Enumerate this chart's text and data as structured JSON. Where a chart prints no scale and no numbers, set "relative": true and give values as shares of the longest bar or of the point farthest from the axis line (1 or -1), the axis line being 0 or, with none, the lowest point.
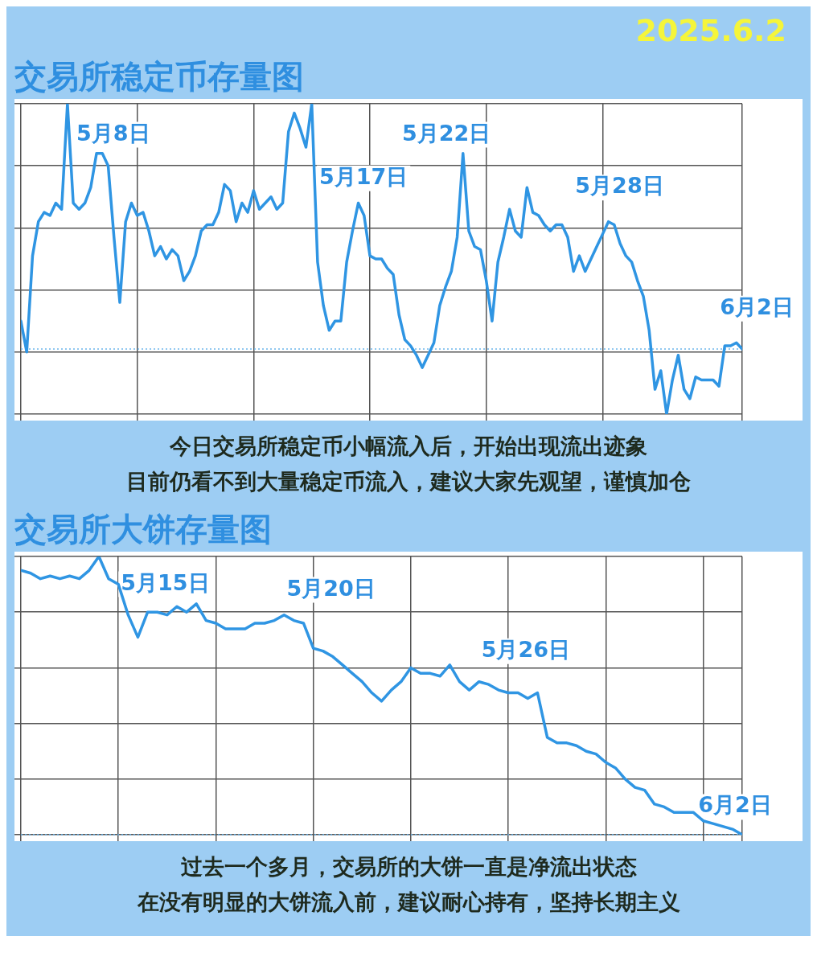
{
  "chart_data": [
    {
      "type": "line",
      "title": "交易所稳定币存量图",
      "subtitle": "2025.6.2",
      "relative": true,
      "grid": true,
      "marker": "none",
      "categories": [
        null,
        null,
        null,
        null,
        null,
        null,
        null,
        null,
        null,
        null,
        null,
        null,
        null,
        null,
        null,
        null,
        null,
        null,
        null,
        null,
        null,
        null,
        null,
        null,
        null,
        null,
        null,
        null,
        null,
        null,
        null,
        null,
        null,
        null,
        null,
        null,
        null,
        null,
        null,
        null,
        null,
        null,
        null,
        null,
        null,
        null,
        null,
        null,
        null,
        null,
        null,
        null,
        null,
        null,
        null,
        null,
        null,
        null,
        null,
        null,
        null,
        null,
        null,
        null,
        null,
        null,
        null,
        null,
        null,
        null,
        null,
        null,
        null,
        null,
        null,
        null,
        null,
        null,
        null,
        null,
        null,
        null,
        null,
        null,
        null,
        null,
        null,
        null,
        null,
        null,
        null,
        null,
        null,
        null,
        null,
        null,
        null,
        null,
        null,
        null,
        null,
        null,
        null,
        null,
        null,
        null,
        null,
        null,
        null,
        null,
        null,
        null,
        null,
        null,
        null,
        null,
        null,
        null,
        null,
        null,
        null,
        null,
        null,
        null,
        null
      ],
      "series": [
        {
          "color": "#2f95e3",
          "values": [
            0.3,
            0.2,
            0.51,
            0.62,
            0.65,
            0.64,
            0.68,
            0.66,
            1,
            0.68,
            0.66,
            0.68,
            0.73,
            0.84,
            0.84,
            0.8,
            0.57,
            0.36,
            0.62,
            0.68,
            0.64,
            0.65,
            0.59,
            0.51,
            0.54,
            0.5,
            0.53,
            0.51,
            0.43,
            0.46,
            0.51,
            0.59,
            0.61,
            0.61,
            0.65,
            0.74,
            0.72,
            0.62,
            0.68,
            0.65,
            0.72,
            0.66,
            0.68,
            0.7,
            0.66,
            0.68,
            0.91,
            0.97,
            0.92,
            0.86,
            1,
            0.49,
            0.35,
            0.27,
            0.3,
            0.3,
            0.49,
            0.59,
            0.68,
            0.64,
            0.51,
            0.5,
            0.5,
            0.47,
            0.45,
            0.32,
            0.24,
            0.22,
            0.19,
            0.15,
            0.19,
            0.23,
            0.35,
            0.41,
            0.46,
            0.57,
            0.84,
            0.59,
            0.54,
            0.53,
            0.43,
            0.3,
            0.49,
            0.57,
            0.66,
            0.59,
            0.57,
            0.73,
            0.65,
            0.64,
            0.61,
            0.59,
            0.61,
            0.61,
            0.57,
            0.46,
            0.51,
            0.46,
            0.5,
            0.54,
            0.58,
            0.62,
            0.61,
            0.55,
            0.51,
            0.49,
            0.43,
            0.38,
            0.27,
            0.08,
            0.14,
            0,
            0.11,
            0.19,
            0.08,
            0.05,
            0.12,
            0.11,
            0.11,
            0.11,
            0.09,
            0.22,
            0.22,
            0.23,
            0.21
          ]
        }
      ],
      "ref_lines": [
        {
          "axis": "y",
          "value": 0.21,
          "color": "#6cb6ec",
          "line_style": "dotted"
        }
      ],
      "annotations": [
        "5月8日",
        "5月17日",
        "5月22日",
        "5月28日",
        "6月2日",
        "今日交易所稳定币小幅流入后，开始出现流出迹象",
        "目前仍看不到大量稳定币流入，建议大家先观望，谨慎加仓"
      ]
    },
    {
      "type": "line",
      "title": "交易所大饼存量图",
      "relative": true,
      "grid": true,
      "marker": "none",
      "categories": [
        null,
        null,
        null,
        null,
        null,
        null,
        null,
        null,
        null,
        null,
        null,
        null,
        null,
        null,
        null,
        null,
        null,
        null,
        null,
        null,
        null,
        null,
        null,
        null,
        null,
        null,
        null,
        null,
        null,
        null,
        null,
        null,
        null,
        null,
        null,
        null,
        null,
        null,
        null,
        null,
        null,
        null,
        null,
        null,
        null,
        null,
        null,
        null,
        null,
        null,
        null,
        null,
        null,
        null,
        null,
        null,
        null,
        null,
        null,
        null,
        null,
        null,
        null,
        null,
        null,
        null,
        null,
        null,
        null,
        null,
        null,
        null,
        null,
        null,
        null
      ],
      "series": [
        {
          "color": "#2f95e3",
          "values": [
            0.95,
            0.94,
            0.92,
            0.93,
            0.92,
            0.93,
            0.92,
            0.95,
            1,
            0.92,
            0.9,
            0.79,
            0.71,
            0.8,
            0.8,
            0.79,
            0.82,
            0.8,
            0.83,
            0.77,
            0.76,
            0.74,
            0.74,
            0.74,
            0.76,
            0.76,
            0.77,
            0.79,
            0.77,
            0.76,
            0.67,
            0.66,
            0.64,
            0.61,
            0.58,
            0.55,
            0.51,
            0.48,
            0.52,
            0.55,
            0.6,
            0.58,
            0.58,
            0.57,
            0.61,
            0.55,
            0.52,
            0.55,
            0.54,
            0.52,
            0.51,
            0.51,
            0.49,
            0.51,
            0.35,
            0.33,
            0.33,
            0.32,
            0.3,
            0.29,
            0.26,
            0.24,
            0.2,
            0.17,
            0.16,
            0.11,
            0.1,
            0.08,
            0.08,
            0.08,
            0.05,
            0.04,
            0.03,
            0.02,
            0
          ]
        }
      ],
      "ref_lines": [
        {
          "axis": "y",
          "value": 0,
          "color": "#6cb6ec",
          "line_style": "dotted"
        }
      ],
      "annotations": [
        "5月15日",
        "5月20日",
        "5月26日",
        "6月2日",
        "过去一个多月，交易所的大饼一直是净流出状态",
        "在没有明显的大饼流入前，建议耐心持有，坚持长期主义"
      ]
    }
  ]
}
